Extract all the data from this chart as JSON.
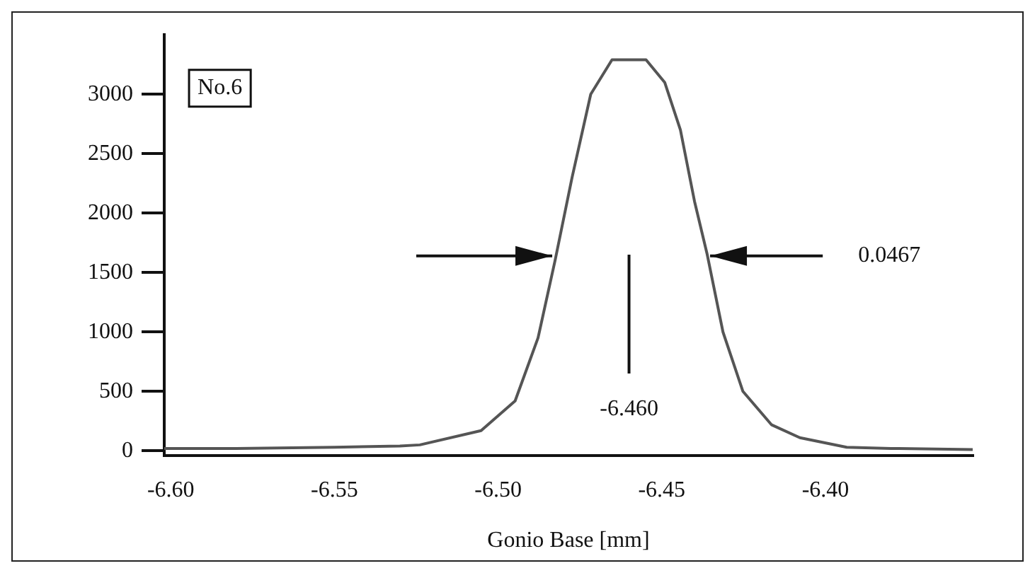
{
  "chart_data": {
    "type": "line",
    "xlabel": "Gonio Base [mm]",
    "x": [
      -6.602,
      -6.58,
      -6.55,
      -6.53,
      -6.5239,
      -6.5052,
      -6.4948,
      -6.4878,
      -6.4826,
      -6.4774,
      -6.4717,
      -6.4652,
      -6.4548,
      -6.4491,
      -6.4443,
      -6.44,
      -6.4361,
      -6.4313,
      -6.4252,
      -6.4165,
      -6.4078,
      -6.3935,
      -6.38,
      -6.355
    ],
    "series": [
      {
        "color": "#555555",
        "values": [
          20,
          20,
          30,
          40,
          50,
          170,
          420,
          950,
          1600,
          2300,
          3000,
          3290,
          3290,
          3100,
          2700,
          2100,
          1650,
          1000,
          500,
          220,
          110,
          30,
          20,
          10
        ]
      }
    ],
    "xlim": [
      -6.602,
      -6.355
    ],
    "xticks": [
      {
        "value": -6.6,
        "label": "-6.60"
      },
      {
        "value": -6.55,
        "label": "-6.55"
      },
      {
        "value": -6.5,
        "label": "-6.50"
      },
      {
        "value": -6.45,
        "label": "-6.45"
      },
      {
        "value": -6.4,
        "label": "-6.40"
      }
    ],
    "ylim": [
      -40,
      3500
    ],
    "yticks": [
      0,
      500,
      1000,
      1500,
      2000,
      2500,
      3000
    ],
    "grid": false,
    "legend": false,
    "marker": "none",
    "line_style": "solid",
    "annotations": [
      "No.6",
      "0.0467",
      "-6.460"
    ]
  }
}
